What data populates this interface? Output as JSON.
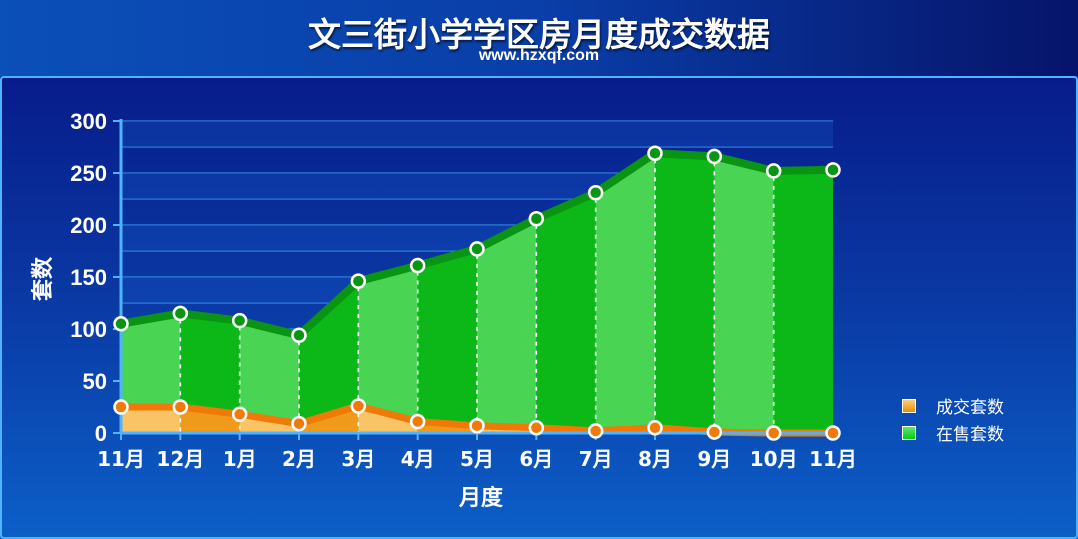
{
  "header": {
    "title": "文三街小学学区房月度成交数据",
    "subtitle": "www.hzxqf.com"
  },
  "colors": {
    "sold": "#f08c0a",
    "sold_light": "#f8c060",
    "onsale": "#0ac814",
    "onsale_light": "#4ce05a"
  },
  "chart_data": {
    "type": "area",
    "title": "文三街小学学区房月度成交数据",
    "xlabel": "月度",
    "ylabel": "套数",
    "categories": [
      "11月",
      "12月",
      "1月",
      "2月",
      "3月",
      "4月",
      "5月",
      "6月",
      "7月",
      "8月",
      "9月",
      "10月",
      "11月"
    ],
    "ylim": [
      0,
      300
    ],
    "yticks": [
      "0",
      "50",
      "100",
      "150",
      "200",
      "250",
      "300"
    ],
    "grid": true,
    "legend_position": "right",
    "series": [
      {
        "name": "成交套数",
        "values": [
          25,
          25,
          18,
          9,
          26,
          11,
          7,
          5,
          2,
          5,
          1,
          0,
          0
        ]
      },
      {
        "name": "在售套数",
        "values": [
          105,
          115,
          108,
          94,
          146,
          161,
          177,
          206,
          231,
          269,
          266,
          252,
          253
        ]
      }
    ]
  }
}
